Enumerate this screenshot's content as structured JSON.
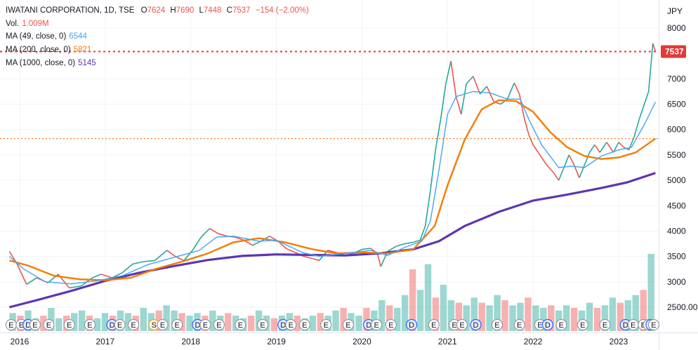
{
  "legend": {
    "symbol": "IWATANI CORPORATION, 1D, TSE",
    "open_label": "O",
    "open": "7624",
    "high_label": "H",
    "high": "7690",
    "low_label": "L",
    "low": "7448",
    "close_label": "C",
    "close": "7537",
    "change": "−154 (−2.00%)",
    "volume_label": "Vol.",
    "volume": "1.009M",
    "ma49_label": "MA (49, close, 0)",
    "ma49_value": "6544",
    "ma200_label": "MA (200, close, 0)",
    "ma200_value": "5821",
    "ma1000_label": "MA (1000, close, 0)",
    "ma1000_value": "5145"
  },
  "colors": {
    "up": "#26a69a",
    "down": "#ef5350",
    "ma49": "#42a5f5",
    "ma200": "#f57c00",
    "ma1000": "#5e35b1",
    "grid": "#f0f3fa",
    "axis_text": "#131722",
    "price_line": "#e53935",
    "ma200_line": "#ef6c00",
    "earnings_border": "#2962ff",
    "split_border": "#f5a623"
  },
  "chart_data": {
    "type": "line",
    "currency": "JPY",
    "y_range": [
      2200,
      8250
    ],
    "y_ticks": [
      8000,
      7500,
      7000,
      6500,
      6000,
      5500,
      5000,
      4500,
      4000,
      3500,
      3000,
      2500
    ],
    "y_tick_labels": [
      "8000",
      "7500",
      "7000",
      "6500",
      "6000",
      "5500",
      "5000",
      "4500",
      "4000",
      "3500",
      "3000",
      "2500.00"
    ],
    "x_range": [
      2015.88,
      2023.43
    ],
    "x_ticks": [
      2016,
      2017,
      2018,
      2019,
      2020,
      2021,
      2022,
      2023
    ],
    "x_tick_labels": [
      "2016",
      "2017",
      "2018",
      "2019",
      "2020",
      "2021",
      "2022",
      "2023"
    ],
    "last_price": 7537,
    "last_price_label": "7537",
    "ma200_last": 5821,
    "price_points": [
      [
        2015.88,
        3600
      ],
      [
        2015.97,
        3350
      ],
      [
        2016.08,
        2950
      ],
      [
        2016.2,
        3080
      ],
      [
        2016.33,
        2980
      ],
      [
        2016.45,
        3150
      ],
      [
        2016.58,
        2880
      ],
      [
        2016.72,
        2920
      ],
      [
        2016.85,
        3080
      ],
      [
        2016.95,
        3150
      ],
      [
        2017.08,
        3080
      ],
      [
        2017.2,
        3180
      ],
      [
        2017.32,
        3350
      ],
      [
        2017.45,
        3400
      ],
      [
        2017.58,
        3420
      ],
      [
        2017.72,
        3620
      ],
      [
        2017.82,
        3500
      ],
      [
        2017.92,
        3420
      ],
      [
        2018.02,
        3620
      ],
      [
        2018.12,
        3880
      ],
      [
        2018.22,
        4050
      ],
      [
        2018.32,
        3950
      ],
      [
        2018.42,
        3900
      ],
      [
        2018.52,
        3880
      ],
      [
        2018.62,
        3820
      ],
      [
        2018.72,
        3720
      ],
      [
        2018.82,
        3800
      ],
      [
        2018.92,
        3900
      ],
      [
        2019.02,
        3800
      ],
      [
        2019.12,
        3650
      ],
      [
        2019.22,
        3580
      ],
      [
        2019.32,
        3500
      ],
      [
        2019.42,
        3460
      ],
      [
        2019.5,
        3420
      ],
      [
        2019.6,
        3620
      ],
      [
        2019.7,
        3580
      ],
      [
        2019.8,
        3520
      ],
      [
        2019.9,
        3560
      ],
      [
        2020.0,
        3640
      ],
      [
        2020.1,
        3660
      ],
      [
        2020.18,
        3560
      ],
      [
        2020.22,
        3300
      ],
      [
        2020.3,
        3600
      ],
      [
        2020.4,
        3700
      ],
      [
        2020.5,
        3750
      ],
      [
        2020.6,
        3780
      ],
      [
        2020.68,
        3820
      ],
      [
        2020.74,
        4100
      ],
      [
        2020.8,
        4800
      ],
      [
        2020.86,
        5600
      ],
      [
        2020.92,
        6200
      ],
      [
        2020.98,
        6900
      ],
      [
        2021.04,
        7350
      ],
      [
        2021.1,
        6650
      ],
      [
        2021.16,
        6300
      ],
      [
        2021.22,
        6900
      ],
      [
        2021.3,
        7050
      ],
      [
        2021.38,
        6700
      ],
      [
        2021.46,
        6850
      ],
      [
        2021.54,
        6550
      ],
      [
        2021.62,
        6500
      ],
      [
        2021.7,
        6600
      ],
      [
        2021.78,
        6920
      ],
      [
        2021.84,
        6700
      ],
      [
        2021.9,
        6200
      ],
      [
        2021.95,
        5900
      ],
      [
        2022.0,
        5700
      ],
      [
        2022.08,
        5500
      ],
      [
        2022.16,
        5300
      ],
      [
        2022.24,
        5150
      ],
      [
        2022.3,
        5000
      ],
      [
        2022.36,
        5250
      ],
      [
        2022.42,
        5500
      ],
      [
        2022.48,
        5300
      ],
      [
        2022.54,
        5050
      ],
      [
        2022.6,
        5300
      ],
      [
        2022.66,
        5550
      ],
      [
        2022.72,
        5700
      ],
      [
        2022.78,
        5550
      ],
      [
        2022.86,
        5750
      ],
      [
        2022.94,
        5550
      ],
      [
        2023.0,
        5750
      ],
      [
        2023.06,
        5650
      ],
      [
        2023.12,
        5600
      ],
      [
        2023.18,
        5850
      ],
      [
        2023.24,
        6200
      ],
      [
        2023.3,
        6500
      ],
      [
        2023.35,
        6750
      ],
      [
        2023.4,
        7700
      ],
      [
        2023.43,
        7537
      ]
    ],
    "ma49_points": [
      [
        2015.88,
        3500
      ],
      [
        2016.05,
        3250
      ],
      [
        2016.3,
        3000
      ],
      [
        2016.6,
        2960
      ],
      [
        2016.9,
        3020
      ],
      [
        2017.2,
        3120
      ],
      [
        2017.5,
        3340
      ],
      [
        2017.8,
        3480
      ],
      [
        2018.1,
        3620
      ],
      [
        2018.3,
        3880
      ],
      [
        2018.5,
        3900
      ],
      [
        2018.8,
        3800
      ],
      [
        2019.0,
        3820
      ],
      [
        2019.3,
        3580
      ],
      [
        2019.5,
        3500
      ],
      [
        2019.8,
        3560
      ],
      [
        2020.1,
        3620
      ],
      [
        2020.3,
        3520
      ],
      [
        2020.5,
        3680
      ],
      [
        2020.7,
        3800
      ],
      [
        2020.8,
        4200
      ],
      [
        2020.9,
        5200
      ],
      [
        2021.0,
        6300
      ],
      [
        2021.1,
        6650
      ],
      [
        2021.3,
        6750
      ],
      [
        2021.5,
        6720
      ],
      [
        2021.7,
        6600
      ],
      [
        2021.85,
        6600
      ],
      [
        2021.95,
        6200
      ],
      [
        2022.1,
        5700
      ],
      [
        2022.3,
        5250
      ],
      [
        2022.45,
        5280
      ],
      [
        2022.6,
        5250
      ],
      [
        2022.8,
        5480
      ],
      [
        2023.0,
        5600
      ],
      [
        2023.15,
        5650
      ],
      [
        2023.3,
        6100
      ],
      [
        2023.43,
        6544
      ]
    ],
    "ma200_points": [
      [
        2015.88,
        3420
      ],
      [
        2016.1,
        3320
      ],
      [
        2016.4,
        3120
      ],
      [
        2016.7,
        3050
      ],
      [
        2017.0,
        3030
      ],
      [
        2017.3,
        3080
      ],
      [
        2017.6,
        3260
      ],
      [
        2017.9,
        3400
      ],
      [
        2018.2,
        3560
      ],
      [
        2018.5,
        3780
      ],
      [
        2018.8,
        3860
      ],
      [
        2019.1,
        3780
      ],
      [
        2019.4,
        3650
      ],
      [
        2019.7,
        3560
      ],
      [
        2020.0,
        3580
      ],
      [
        2020.3,
        3560
      ],
      [
        2020.6,
        3640
      ],
      [
        2020.85,
        4100
      ],
      [
        2021.0,
        4900
      ],
      [
        2021.2,
        5800
      ],
      [
        2021.4,
        6400
      ],
      [
        2021.6,
        6580
      ],
      [
        2021.8,
        6560
      ],
      [
        2022.0,
        6350
      ],
      [
        2022.2,
        5950
      ],
      [
        2022.4,
        5650
      ],
      [
        2022.6,
        5480
      ],
      [
        2022.8,
        5420
      ],
      [
        2023.0,
        5450
      ],
      [
        2023.2,
        5550
      ],
      [
        2023.43,
        5821
      ]
    ],
    "ma1000_points": [
      [
        2015.88,
        2500
      ],
      [
        2016.2,
        2640
      ],
      [
        2016.6,
        2820
      ],
      [
        2017.0,
        3020
      ],
      [
        2017.4,
        3180
      ],
      [
        2017.8,
        3310
      ],
      [
        2018.2,
        3430
      ],
      [
        2018.6,
        3510
      ],
      [
        2019.0,
        3540
      ],
      [
        2019.4,
        3530
      ],
      [
        2019.8,
        3520
      ],
      [
        2020.2,
        3560
      ],
      [
        2020.6,
        3640
      ],
      [
        2020.9,
        3800
      ],
      [
        2021.2,
        4100
      ],
      [
        2021.6,
        4380
      ],
      [
        2022.0,
        4600
      ],
      [
        2022.4,
        4720
      ],
      [
        2022.8,
        4850
      ],
      [
        2023.1,
        4960
      ],
      [
        2023.43,
        5145
      ]
    ],
    "volume": {
      "max": 3,
      "values": [
        0.7,
        0.6,
        0.8,
        0.5,
        0.6,
        0.9,
        0.5,
        0.6,
        0.7,
        0.8,
        0.6,
        0.5,
        0.7,
        0.6,
        0.8,
        0.7,
        0.6,
        0.9,
        0.7,
        0.8,
        1.0,
        0.8,
        0.7,
        0.6,
        0.7,
        0.6,
        0.8,
        0.6,
        0.7,
        0.6,
        0.5,
        0.6,
        0.8,
        0.6,
        0.5,
        0.6,
        0.7,
        0.6,
        0.5,
        0.6,
        0.7,
        0.6,
        0.8,
        0.9,
        0.7,
        0.6,
        0.9,
        0.8,
        1.2,
        1.0,
        0.9,
        1.4,
        2.4,
        1.6,
        2.6,
        1.3,
        1.8,
        1.2,
        1.1,
        1.0,
        1.3,
        1.1,
        1.0,
        1.4,
        1.2,
        1.0,
        1.1,
        1.3,
        1.0,
        0.9,
        1.0,
        0.8,
        1.0,
        0.9,
        0.8,
        1.1,
        0.9,
        1.0,
        1.3,
        1.1,
        1.2,
        1.4,
        1.6,
        3.0
      ],
      "x_start": 2015.88,
      "x_end": 2023.43
    },
    "events": {
      "earnings_label": "E",
      "split_label": "S",
      "dividend_label": "D",
      "sequence": [
        "E",
        "E",
        "D",
        "E",
        "E",
        "E",
        "E",
        "D",
        "E",
        "E",
        "S",
        "E",
        "E",
        "D",
        "E",
        "E",
        "E",
        "E",
        "D",
        "E",
        "E",
        "E",
        "E",
        "D",
        "E",
        "E",
        "D",
        "E",
        "E",
        "E",
        "D",
        "E",
        "E",
        "E",
        "D",
        "E",
        "E",
        "E",
        "D",
        "E",
        "E",
        "E",
        "D",
        "E"
      ],
      "x": [
        2015.9,
        2016.02,
        2016.1,
        2016.18,
        2016.34,
        2016.58,
        2016.82,
        2017.08,
        2017.17,
        2017.33,
        2017.57,
        2017.67,
        2017.84,
        2018.08,
        2018.17,
        2018.33,
        2018.58,
        2018.84,
        2019.08,
        2019.17,
        2019.33,
        2019.58,
        2019.84,
        2020.08,
        2020.17,
        2020.34,
        2020.58,
        2020.84,
        2021.08,
        2021.17,
        2021.33,
        2021.58,
        2021.84,
        2022.08,
        2022.17,
        2022.33,
        2022.58,
        2022.84,
        2023.08,
        2023.17,
        2023.29,
        2023.35,
        2023.38,
        2023.41
      ]
    }
  }
}
